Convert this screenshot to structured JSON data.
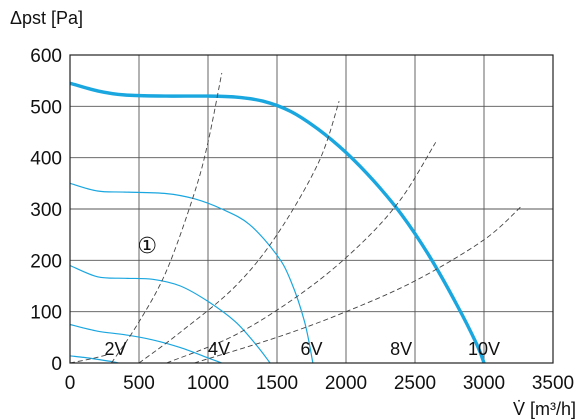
{
  "chart_data": {
    "type": "line",
    "ylabel": "Δpst [Pa]",
    "xlabel": "V̇ [m³/h]",
    "xlim": [
      0,
      3500
    ],
    "ylim": [
      0,
      600
    ],
    "xticks": [
      0,
      500,
      1000,
      1500,
      2000,
      2500,
      3000,
      3500
    ],
    "yticks": [
      0,
      100,
      200,
      300,
      400,
      500,
      600
    ],
    "grid": true,
    "marker_label": "①",
    "marker_pos": [
      560,
      230
    ],
    "voltage_labels": [
      {
        "text": "2V",
        "x": 330,
        "y": 0
      },
      {
        "text": "4V",
        "x": 1080,
        "y": 0
      },
      {
        "text": "6V",
        "x": 1750,
        "y": 0
      },
      {
        "text": "8V",
        "x": 2400,
        "y": 0
      },
      {
        "text": "10V",
        "x": 3000,
        "y": 0
      }
    ],
    "series": [
      {
        "style": "main",
        "x": [
          0,
          200,
          400,
          700,
          1000,
          1200,
          1400,
          1600,
          1800,
          2000,
          2200,
          2400,
          2600,
          2800,
          2950,
          3000
        ],
        "y": [
          545,
          530,
          522,
          520,
          520,
          518,
          510,
          490,
          455,
          410,
          355,
          290,
          210,
          115,
          35,
          0
        ]
      },
      {
        "style": "thin",
        "x": [
          0,
          200,
          400,
          700,
          900,
          1100,
          1300,
          1500,
          1600,
          1700,
          1760
        ],
        "y": [
          350,
          335,
          333,
          330,
          320,
          300,
          270,
          210,
          160,
          80,
          0
        ]
      },
      {
        "style": "thin",
        "x": [
          0,
          200,
          400,
          600,
          800,
          1000,
          1200,
          1350,
          1450
        ],
        "y": [
          190,
          168,
          165,
          163,
          150,
          120,
          80,
          35,
          0
        ]
      },
      {
        "style": "thin",
        "x": [
          0,
          200,
          400,
          600,
          800,
          1000,
          1100
        ],
        "y": [
          75,
          62,
          55,
          45,
          30,
          10,
          0
        ]
      },
      {
        "style": "thin",
        "x": [
          0,
          100,
          200,
          300,
          350
        ],
        "y": [
          14,
          11,
          7,
          3,
          0
        ]
      },
      {
        "style": "dashed",
        "x": [
          300,
          500,
          700,
          900,
          1000,
          1100
        ],
        "y": [
          0,
          80,
          180,
          330,
          430,
          565
        ]
      },
      {
        "style": "dashed",
        "x": [
          500,
          800,
          1200,
          1500,
          1800,
          1950
        ],
        "y": [
          0,
          60,
          150,
          250,
          390,
          510
        ]
      },
      {
        "style": "dashed",
        "x": [
          700,
          1200,
          1700,
          2100,
          2400,
          2650
        ],
        "y": [
          0,
          55,
          140,
          230,
          320,
          430
        ]
      },
      {
        "style": "dashed",
        "x": [
          900,
          1500,
          2000,
          2500,
          3000,
          3270
        ],
        "y": [
          0,
          50,
          100,
          160,
          240,
          305
        ]
      },
      {
        "style": "dashed",
        "x": [
          0,
          150,
          300
        ],
        "y": [
          0,
          8,
          18
        ]
      }
    ]
  }
}
